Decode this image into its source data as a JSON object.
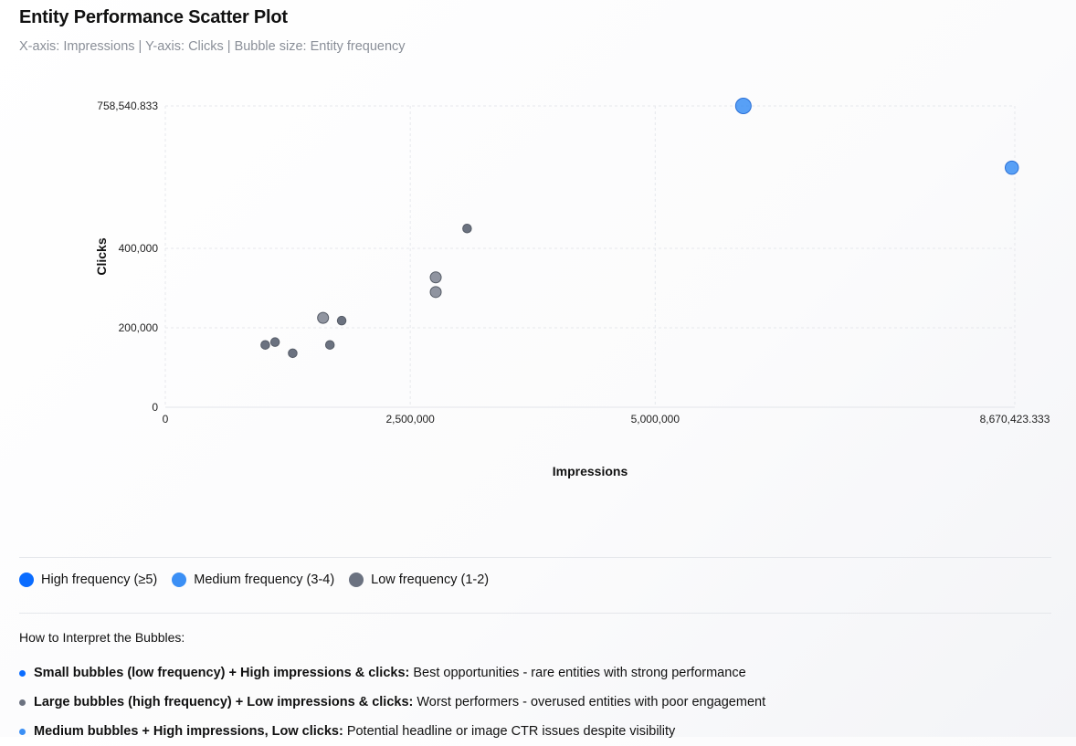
{
  "header": {
    "title": "Entity Performance Scatter Plot",
    "subtitle": "X-axis: Impressions | Y-axis: Clicks | Bubble size: Entity frequency"
  },
  "chart_data": {
    "type": "scatter",
    "title": "Entity Performance Scatter Plot",
    "xlabel": "Impressions",
    "ylabel": "Clicks",
    "xlim": [
      0,
      8670423.333
    ],
    "ylim": [
      0,
      758540.833
    ],
    "x_ticks": [
      0,
      2500000,
      5000000,
      8670423.333
    ],
    "x_tick_labels": [
      "0",
      "2,500,000",
      "5,000,000",
      "8,670,423.333"
    ],
    "y_ticks": [
      0,
      200000,
      400000,
      758540.833
    ],
    "y_tick_labels": [
      "0",
      "200,000",
      "400,000",
      "758,540.833"
    ],
    "grid": true,
    "legend_position": "bottom",
    "series": [
      {
        "name": "High frequency (≥5)",
        "color": "#0a6cff",
        "points": []
      },
      {
        "name": "Medium frequency (3-4)",
        "color": "#3b8ff5",
        "points": [
          {
            "x": 5900000,
            "y": 758540,
            "size": 4
          },
          {
            "x": 8640000,
            "y": 603000,
            "size": 3
          }
        ]
      },
      {
        "name": "Low frequency (1-2)",
        "color": "#6b7280",
        "points": [
          {
            "x": 1020000,
            "y": 157000,
            "size": 1
          },
          {
            "x": 1120000,
            "y": 164000,
            "size": 1
          },
          {
            "x": 1300000,
            "y": 136000,
            "size": 1
          },
          {
            "x": 1610000,
            "y": 225000,
            "size": 2
          },
          {
            "x": 1680000,
            "y": 157000,
            "size": 1
          },
          {
            "x": 1800000,
            "y": 218000,
            "size": 1
          },
          {
            "x": 2760000,
            "y": 327000,
            "size": 2
          },
          {
            "x": 2760000,
            "y": 290000,
            "size": 2
          },
          {
            "x": 3080000,
            "y": 450000,
            "size": 1
          }
        ]
      }
    ]
  },
  "legend": [
    {
      "label": "High frequency (≥5)",
      "color": "#0a6cff"
    },
    {
      "label": "Medium frequency (3-4)",
      "color": "#3b8ff5"
    },
    {
      "label": "Low frequency (1-2)",
      "color": "#6b7280"
    }
  ],
  "interpretation": {
    "title": "How to Interpret the Bubbles:",
    "items": [
      {
        "bold": "Small bubbles (low frequency) + High impressions & clicks:",
        "text": "Best opportunities - rare entities with strong performance",
        "color": "#0a6cff"
      },
      {
        "bold": "Large bubbles (high frequency) + Low impressions & clicks:",
        "text": "Worst performers - overused entities with poor engagement",
        "color": "#6b7280"
      },
      {
        "bold": "Medium bubbles + High impressions, Low clicks:",
        "text": "Potential headline or image CTR issues despite visibility",
        "color": "#3b8ff5"
      }
    ]
  }
}
